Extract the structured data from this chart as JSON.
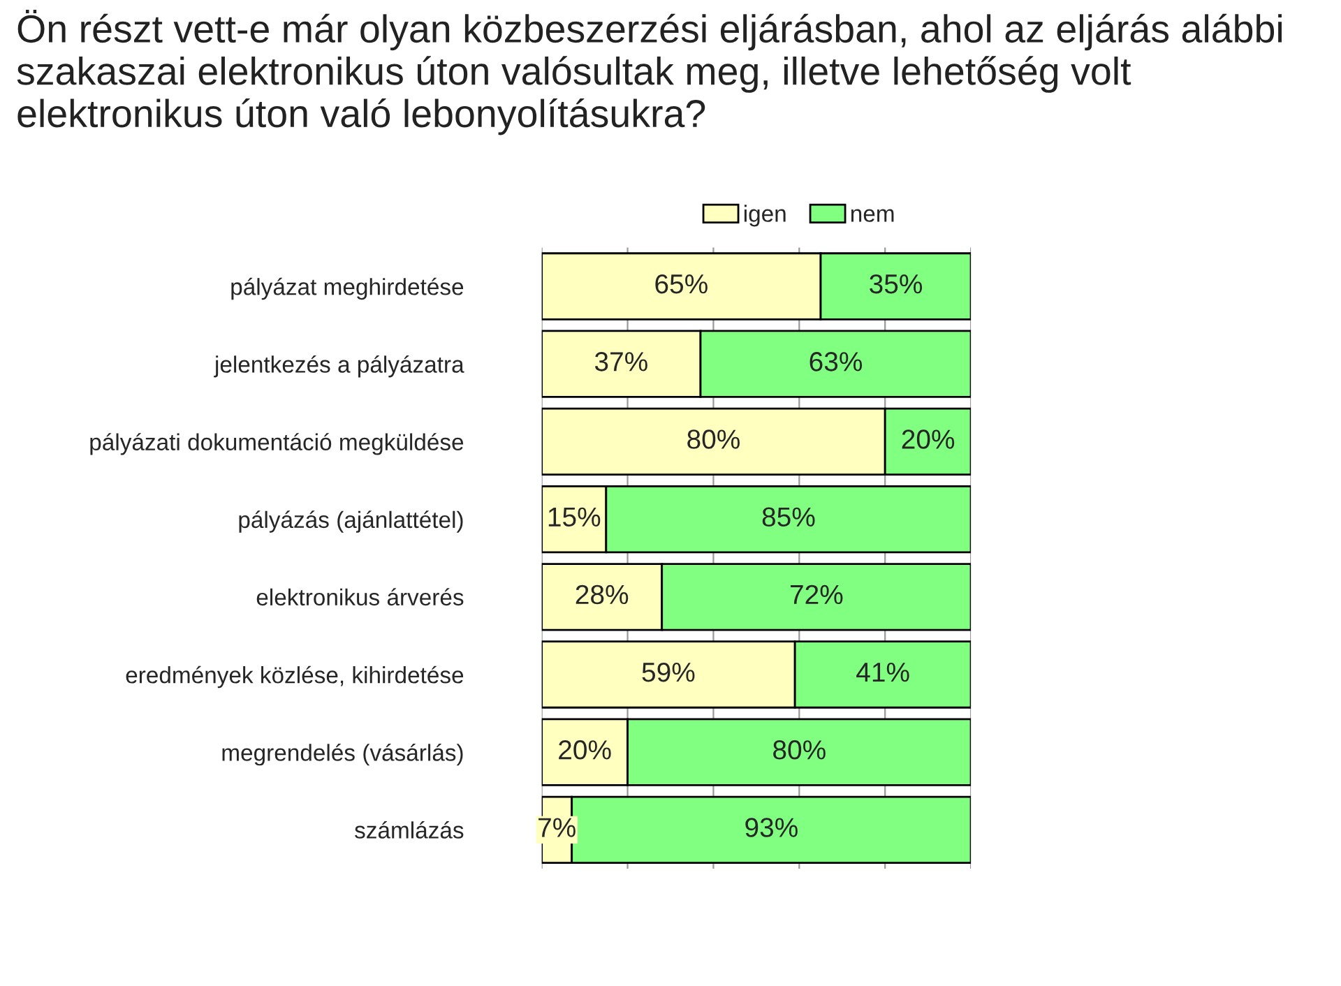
{
  "chart_data": {
    "type": "bar",
    "orientation": "horizontal",
    "stacked": true,
    "title": "Ön részt vett-e már olyan közbeszerzési eljárásban, ahol az eljárás alábbi szakaszai elektronikus úton valósultak meg, illetve lehetőség volt elektronikus úton való lebonyolításukra?",
    "categories": [
      "pályázat meghirdetése",
      "jelentkezés a pályázatra",
      "pályázati dokumentáció megküldése",
      "pályázás (ajánlattétel)",
      "elektronikus árverés",
      "eredmények közlése, kihirdetése",
      "megrendelés (vásárlás)",
      "számlázás"
    ],
    "series": [
      {
        "name": "igen",
        "color": "#ffffc0",
        "values": [
          65,
          37,
          80,
          15,
          28,
          59,
          20,
          7
        ],
        "value_labels": [
          "65%",
          "37%",
          "80%",
          "15%",
          "28%",
          "59%",
          "20%",
          "7%"
        ]
      },
      {
        "name": "nem",
        "color": "#80ff80",
        "values": [
          35,
          63,
          20,
          85,
          72,
          41,
          80,
          93
        ],
        "value_labels": [
          "35%",
          "63%",
          "20%",
          "85%",
          "72%",
          "41%",
          "80%",
          "93%"
        ]
      }
    ],
    "xlim": [
      0,
      100
    ],
    "xticks": [
      {
        "value": 0,
        "label": null
      },
      {
        "value": 20,
        "label": null
      },
      {
        "value": 40,
        "label": null
      },
      {
        "value": 60,
        "label": null
      },
      {
        "value": 80,
        "label": null
      },
      {
        "value": 100,
        "label": null
      }
    ],
    "tick_labels": "y",
    "grid": "x",
    "legend": "top"
  }
}
